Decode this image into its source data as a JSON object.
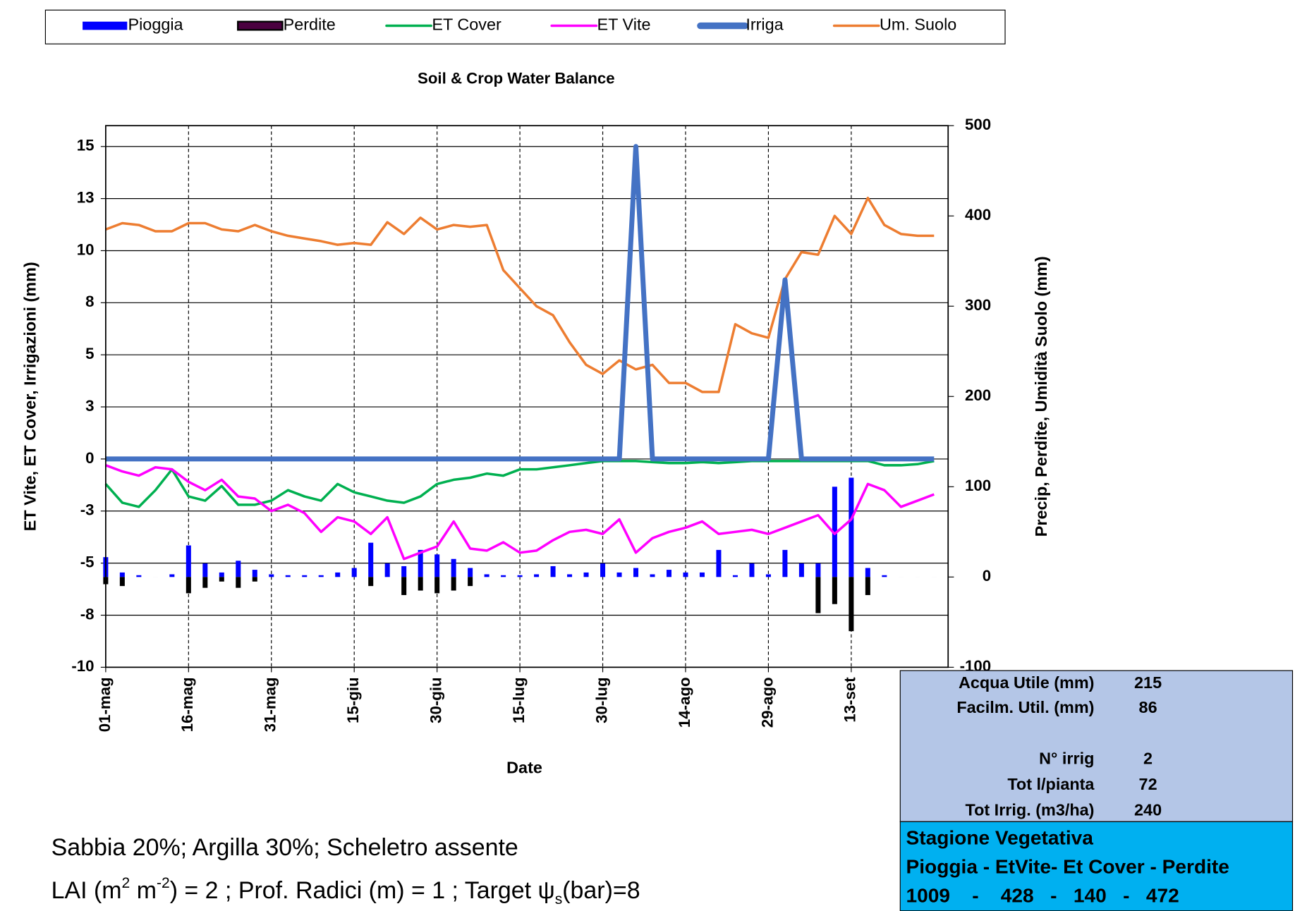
{
  "chart_data": {
    "type": "combo",
    "title": "Soil & Crop Water Balance",
    "x_label": "Date",
    "y_label": "ET Vite, ET Cover, Irrigazioni (mm)",
    "y2_label": "Precip, Perdite, Umidità Suolo (mm)",
    "x": [
      "01-mag",
      "04-mag",
      "07-mag",
      "10-mag",
      "13-mag",
      "16-mag",
      "19-mag",
      "22-mag",
      "25-mag",
      "28-mag",
      "31-mag",
      "03-giu",
      "06-giu",
      "09-giu",
      "12-giu",
      "15-giu",
      "18-giu",
      "21-giu",
      "24-giu",
      "27-giu",
      "30-giu",
      "03-lug",
      "06-lug",
      "09-lug",
      "12-lug",
      "15-lug",
      "18-lug",
      "21-lug",
      "24-lug",
      "27-lug",
      "30-lug",
      "02-ago",
      "05-ago",
      "08-ago",
      "11-ago",
      "14-ago",
      "17-ago",
      "20-ago",
      "23-ago",
      "26-ago",
      "29-ago",
      "01-set",
      "04-set",
      "07-set",
      "10-set",
      "13-set",
      "16-set",
      "19-set",
      "22-set",
      "25-set",
      "28-set"
    ],
    "xticks": [
      "01-mag",
      "16-mag",
      "31-mag",
      "15-giu",
      "30-giu",
      "15-lug",
      "30-lug",
      "14-ago",
      "29-ago",
      "13-set"
    ],
    "ylim": [
      -10,
      16
    ],
    "yticks": [
      -10,
      {
        "value": -7.5,
        "label": "-8"
      },
      -5,
      {
        "value": -2.5,
        "label": "-3"
      },
      0,
      {
        "value": 2.5,
        "label": "3"
      },
      5,
      {
        "value": 7.5,
        "label": "8"
      },
      10,
      {
        "value": 12.5,
        "label": "13"
      },
      15
    ],
    "y2lim": [
      -100,
      500
    ],
    "y2ticks": [
      -100,
      0,
      100,
      200,
      300,
      400,
      500
    ],
    "grid": true,
    "legend": "top",
    "series": [
      {
        "name": "Pioggia",
        "kind": "bar",
        "axis": "y2",
        "color": "#0000ff",
        "values": [
          22,
          5,
          2,
          0,
          3,
          35,
          15,
          5,
          18,
          8,
          3,
          2,
          2,
          2,
          5,
          10,
          38,
          15,
          12,
          30,
          25,
          20,
          10,
          3,
          2,
          2,
          3,
          12,
          3,
          5,
          15,
          5,
          10,
          3,
          8,
          5,
          5,
          30,
          2,
          15,
          3,
          30,
          15,
          15,
          100,
          110,
          10,
          2,
          0,
          0,
          0
        ]
      },
      {
        "name": "Perdite",
        "kind": "bar",
        "axis": "y2",
        "color": "#000000",
        "values": [
          -8,
          -10,
          0,
          0,
          0,
          -18,
          -12,
          -5,
          -12,
          -5,
          0,
          0,
          0,
          0,
          0,
          0,
          -10,
          0,
          -20,
          -15,
          -18,
          -15,
          -10,
          0,
          0,
          0,
          0,
          0,
          0,
          0,
          0,
          0,
          0,
          0,
          0,
          0,
          0,
          0,
          0,
          0,
          0,
          0,
          0,
          -40,
          -30,
          -60,
          -20,
          0,
          0,
          0,
          0
        ]
      },
      {
        "name": "ET Cover",
        "kind": "line",
        "axis": "y",
        "color": "#00b050",
        "values": [
          -1.2,
          -2.1,
          -2.3,
          -1.5,
          -0.5,
          -1.8,
          -2.0,
          -1.3,
          -2.2,
          -2.2,
          -2.0,
          -1.5,
          -1.8,
          -2.0,
          -1.2,
          -1.6,
          -1.8,
          -2.0,
          -2.1,
          -1.8,
          -1.2,
          -1.0,
          -0.9,
          -0.7,
          -0.8,
          -0.5,
          -0.5,
          -0.4,
          -0.3,
          -0.2,
          -0.1,
          -0.1,
          -0.1,
          -0.15,
          -0.2,
          -0.2,
          -0.15,
          -0.2,
          -0.15,
          -0.1,
          -0.1,
          -0.1,
          -0.1,
          -0.1,
          -0.1,
          -0.1,
          -0.1,
          -0.3,
          -0.3,
          -0.25,
          -0.1
        ]
      },
      {
        "name": "ET Vite",
        "kind": "line",
        "axis": "y",
        "color": "#ff00ff",
        "values": [
          -0.3,
          -0.6,
          -0.8,
          -0.4,
          -0.5,
          -1.1,
          -1.5,
          -1.0,
          -1.8,
          -1.9,
          -2.5,
          -2.2,
          -2.6,
          -3.5,
          -2.8,
          -3.0,
          -3.6,
          -2.8,
          -4.8,
          -4.5,
          -4.2,
          -3.0,
          -4.3,
          -4.4,
          -4.0,
          -4.5,
          -4.4,
          -3.9,
          -3.5,
          -3.4,
          -3.6,
          -2.9,
          -4.5,
          -3.8,
          -3.5,
          -3.3,
          -3.0,
          -3.6,
          -3.5,
          -3.4,
          -3.6,
          -3.3,
          -3.0,
          -2.7,
          -3.6,
          -2.9,
          -1.2,
          -1.5,
          -2.3,
          -2.0,
          -1.7
        ]
      },
      {
        "name": "Irriga",
        "kind": "line",
        "axis": "y",
        "color": "#4472c4",
        "values": [
          0,
          0,
          0,
          0,
          0,
          0,
          0,
          0,
          0,
          0,
          0,
          0,
          0,
          0,
          0,
          0,
          0,
          0,
          0,
          0,
          0,
          0,
          0,
          0,
          0,
          0,
          0,
          0,
          0,
          0,
          0,
          0,
          15,
          0,
          0,
          0,
          0,
          0,
          0,
          0,
          0,
          8.6,
          0,
          0,
          0,
          0,
          0,
          0,
          0,
          0,
          0
        ]
      },
      {
        "name": "Um. Suolo",
        "kind": "line",
        "axis": "y2",
        "color": "#ed7d31",
        "values": [
          385,
          392,
          390,
          383,
          383,
          392,
          392,
          385,
          383,
          390,
          383,
          378,
          375,
          372,
          368,
          370,
          368,
          393,
          380,
          398,
          385,
          390,
          388,
          390,
          340,
          320,
          300,
          290,
          260,
          235,
          225,
          240,
          230,
          235,
          215,
          215,
          205,
          205,
          280,
          270,
          265,
          330,
          360,
          357,
          400,
          380,
          420,
          390,
          380,
          378,
          378
        ]
      }
    ]
  },
  "info": {
    "rows": [
      {
        "label": "Acqua Utile (mm)",
        "value": 215
      },
      {
        "label": "Facilm. Util. (mm)",
        "value": 86
      },
      {
        "label": "N° irrig",
        "value": 2
      },
      {
        "label": "Tot l/pianta",
        "value": 72
      },
      {
        "label": "Tot Irrig. (m3/ha)",
        "value": 240
      }
    ],
    "season": "Stagione Vegetativa",
    "season_header": "Pioggia - EtVite- Et Cover - Perdite",
    "season_values": "1009    -    428   -   140   -   472"
  },
  "notes": {
    "line1": "Sabbia 20%; Argilla 30%; Scheletro assente",
    "line2": [
      "LAI (m",
      "2",
      " m",
      "-2",
      ") = 2 ; Prof. Radici (m) = 1 ; Target ψ",
      "s",
      "(bar)=8"
    ]
  }
}
